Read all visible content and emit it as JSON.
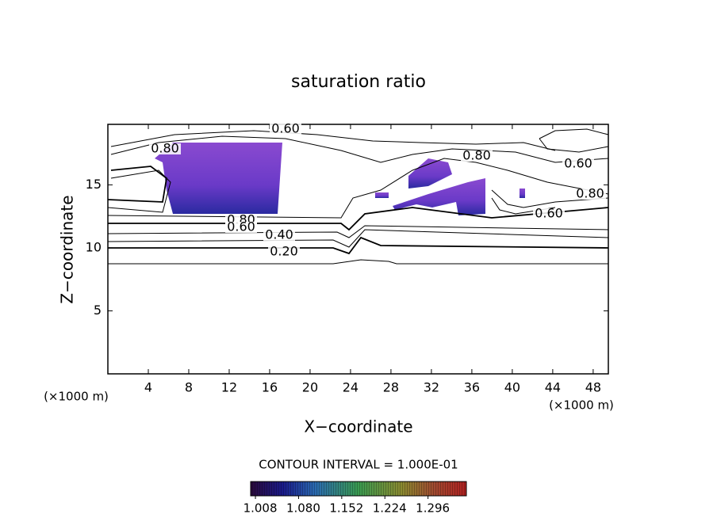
{
  "chart_data": {
    "type": "contour",
    "title": "saturation ratio",
    "x_label": "X−coordinate",
    "y_label": "Z−coordinate",
    "x_unit": "(×1000 m)",
    "y_unit": "(×1000 m)",
    "xlim": [
      0,
      49.5
    ],
    "ylim": [
      0,
      19.8
    ],
    "xticks": [
      4,
      8,
      12,
      16,
      20,
      24,
      28,
      32,
      36,
      40,
      44,
      48
    ],
    "yticks": [
      5,
      10,
      15
    ],
    "contour_labels": [
      "0.60",
      "0.80",
      "0.80",
      "0.60",
      "0.80",
      "0.60",
      "0.80",
      "0.60",
      "0.40",
      "0.20"
    ],
    "contour_interval": "CONTOUR INTERVAL = 1.000E-01",
    "colorbar": {
      "clim": [
        1.0,
        1.36
      ],
      "ticks": [
        1.008,
        1.08,
        1.152,
        1.224,
        1.296
      ],
      "tick_labels": [
        "1.008",
        "1.080",
        "1.152",
        "1.224",
        "1.296"
      ]
    }
  }
}
